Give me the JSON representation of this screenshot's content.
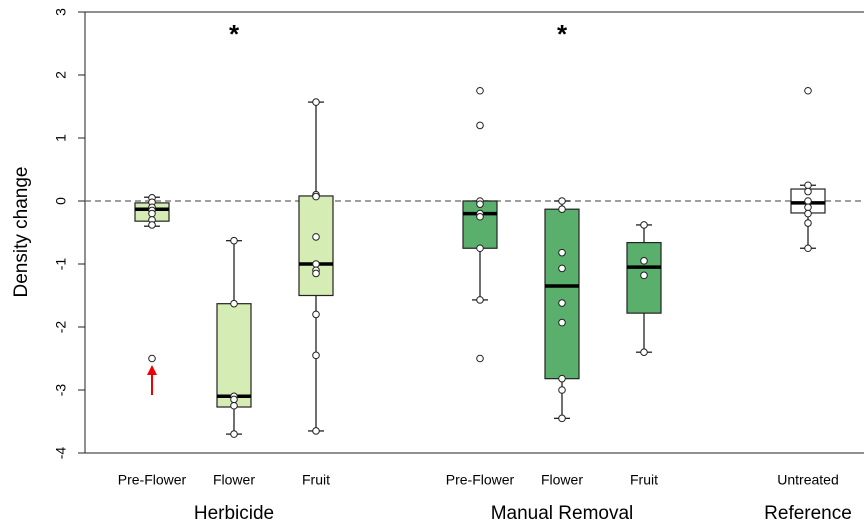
{
  "chart_data": {
    "type": "box",
    "ylabel": "Density change",
    "ylim": [
      -4,
      3
    ],
    "yticks": [
      -4,
      -3,
      -2,
      -1,
      0,
      1,
      2,
      3
    ],
    "hline": 0,
    "groups": [
      {
        "name": "Herbicide",
        "boxes": [
          {
            "label": "Pre-Flower",
            "color": "#d5ecb5",
            "whislo": -0.4,
            "q1": -0.32,
            "med": -0.13,
            "q3": -0.03,
            "whishi": 0.06,
            "points": [
              0.05,
              -0.02,
              -0.1,
              -0.15,
              -0.2,
              -0.3,
              -0.38,
              -2.5
            ]
          },
          {
            "label": "Flower",
            "color": "#d5ecb5",
            "whislo": -3.7,
            "q1": -3.27,
            "med": -3.1,
            "q3": -1.63,
            "whishi": -0.63,
            "points": [
              -0.63,
              -1.63,
              -3.1,
              -3.15,
              -3.25,
              -3.7
            ],
            "annotation": "*"
          },
          {
            "label": "Fruit",
            "color": "#d5ecb5",
            "whislo": -3.65,
            "q1": -1.5,
            "med": -1.0,
            "q3": 0.08,
            "whishi": 1.57,
            "points": [
              1.57,
              0.1,
              0.07,
              -0.57,
              -1.0,
              -1.1,
              -1.15,
              -1.8,
              -2.45,
              -3.65
            ]
          }
        ]
      },
      {
        "name": "Manual Removal",
        "boxes": [
          {
            "label": "Pre-Flower",
            "color": "#5aaf6d",
            "whislo": -1.57,
            "q1": -0.75,
            "med": -0.2,
            "q3": 0.0,
            "whishi": 0.0,
            "points": [
              1.75,
              1.2,
              0.0,
              -0.05,
              -0.2,
              -0.25,
              -0.75,
              -1.57,
              -2.5
            ]
          },
          {
            "label": "Flower",
            "color": "#5aaf6d",
            "whislo": -3.45,
            "q1": -2.82,
            "med": -1.35,
            "q3": -0.13,
            "whishi": 0.0,
            "points": [
              0.0,
              -0.13,
              -0.82,
              -1.07,
              -1.62,
              -1.93,
              -2.82,
              -3.0,
              -3.45
            ],
            "annotation": "*"
          },
          {
            "label": "Fruit",
            "color": "#5aaf6d",
            "whislo": -2.4,
            "q1": -1.78,
            "med": -1.05,
            "q3": -0.66,
            "whishi": -0.38,
            "points": [
              -0.38,
              -0.95,
              -1.18,
              -2.4
            ]
          }
        ]
      },
      {
        "name": "Reference",
        "boxes": [
          {
            "label": "Untreated",
            "color": "#ffffff",
            "whislo": -0.75,
            "q1": -0.19,
            "med": -0.03,
            "q3": 0.19,
            "whishi": 0.25,
            "points": [
              1.75,
              0.25,
              0.15,
              0.0,
              -0.1,
              -0.2,
              -0.35,
              -0.75
            ]
          }
        ]
      }
    ]
  }
}
